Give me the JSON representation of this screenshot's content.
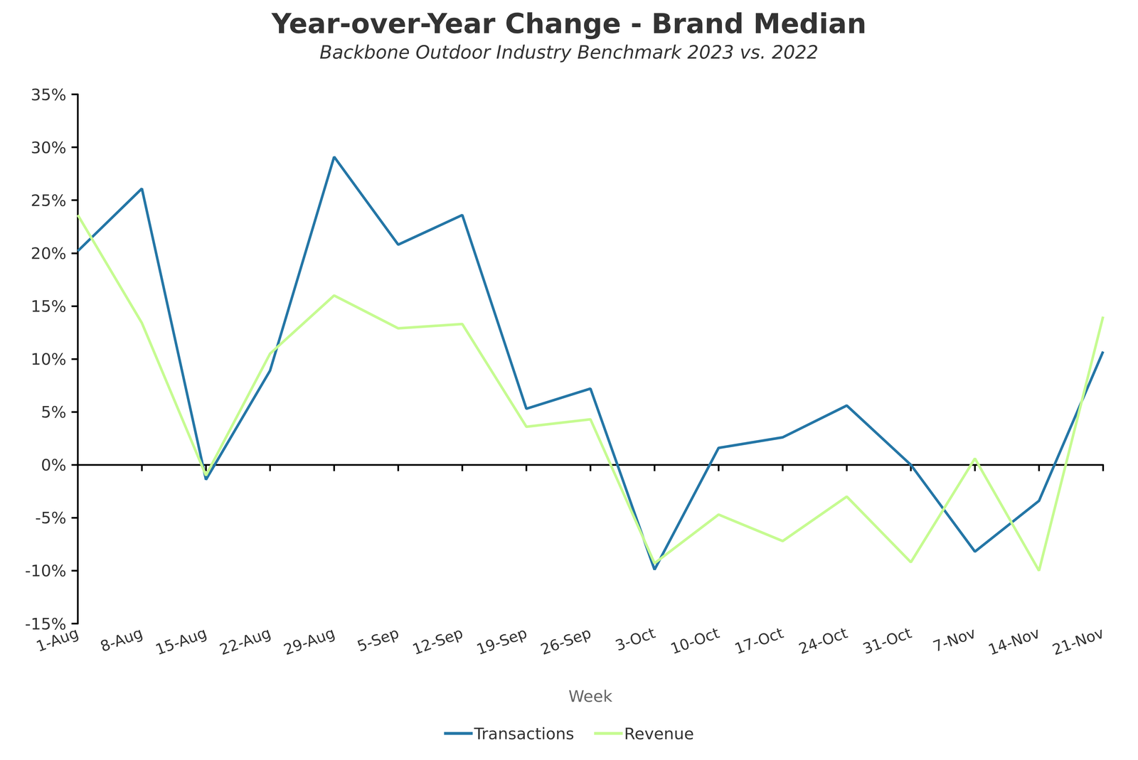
{
  "chart_data": {
    "type": "line",
    "title": "Year-over-Year Change - Brand Median",
    "subtitle": "Backbone Outdoor Industry Benchmark 2023 vs. 2022",
    "x_label": "Week",
    "categories": [
      "1-Aug",
      "8-Aug",
      "15-Aug",
      "22-Aug",
      "29-Aug",
      "5-Sep",
      "12-Sep",
      "19-Sep",
      "26-Sep",
      "3-Oct",
      "10-Oct",
      "17-Oct",
      "24-Oct",
      "31-Oct",
      "7-Nov",
      "14-Nov",
      "21-Nov"
    ],
    "series": [
      {
        "name": "Transactions",
        "color": "#2476a6",
        "values": [
          20.2,
          26.1,
          -1.4,
          8.9,
          29.1,
          20.8,
          23.6,
          5.3,
          7.2,
          -9.9,
          1.6,
          2.6,
          5.6,
          0.0,
          -8.2,
          -3.4,
          10.7
        ]
      },
      {
        "name": "Revenue",
        "color": "#c6fb91",
        "values": [
          23.6,
          13.4,
          -1.0,
          10.5,
          16.0,
          12.9,
          13.3,
          3.6,
          4.3,
          -9.3,
          -4.7,
          -7.2,
          -3.0,
          -9.2,
          0.6,
          -10.0,
          14.0
        ]
      }
    ],
    "ylim": [
      -15,
      35
    ],
    "yticks": [
      {
        "value": -15,
        "label": "-15%"
      },
      {
        "value": -10,
        "label": "-10%"
      },
      {
        "value": -5,
        "label": "-5%"
      },
      {
        "value": 0,
        "label": "0%"
      },
      {
        "value": 5,
        "label": "5%"
      },
      {
        "value": 10,
        "label": "10%"
      },
      {
        "value": 15,
        "label": "15%"
      },
      {
        "value": 20,
        "label": "20%"
      },
      {
        "value": 25,
        "label": "25%"
      },
      {
        "value": 30,
        "label": "30%"
      },
      {
        "value": 35,
        "label": "35%"
      }
    ],
    "legend": "bottom",
    "grid": false
  }
}
